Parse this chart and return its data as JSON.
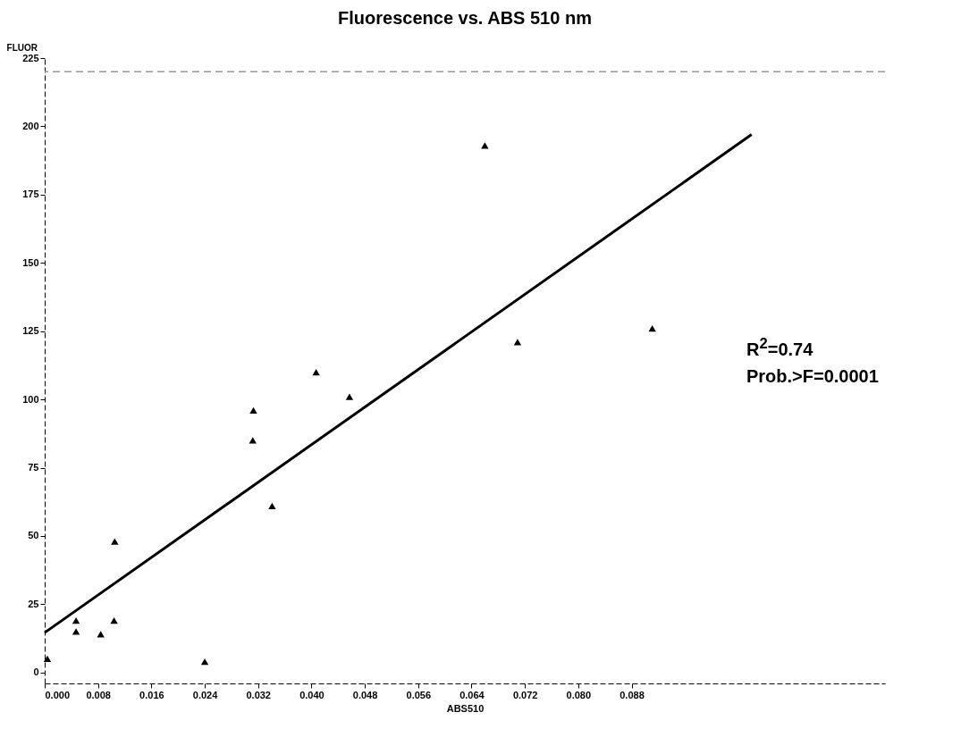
{
  "chart_data": {
    "type": "scatter",
    "title": "Fluorescence vs. ABS 510 nm",
    "xlabel": "ABS510",
    "ylabel": "FLUOR",
    "xlim": [
      0,
      0.126
    ],
    "xticks": [
      {
        "value": 0,
        "label": "0.000"
      },
      0.008,
      0.016,
      0.024,
      0.032,
      {
        "value": 0.04,
        "label": "0.040"
      },
      0.048,
      0.056,
      0.064,
      0.072,
      {
        "value": 0.08,
        "label": "0.080"
      },
      0.088
    ],
    "ylim": [
      -4,
      225
    ],
    "yticks": [
      0,
      25,
      50,
      75,
      100,
      125,
      150,
      175,
      200,
      225
    ],
    "grid": false,
    "series": [
      {
        "type": "scatter",
        "color": "#000000",
        "marker": "triangle",
        "x": [
          0.0004,
          0.0047,
          0.0047,
          0.0084,
          0.0104,
          0.0105,
          0.024,
          0.0312,
          0.0313,
          0.0341,
          0.0407,
          0.0457,
          0.066,
          0.0709,
          0.0911
        ],
        "values": [
          5,
          19,
          15,
          14,
          19,
          48,
          4,
          85,
          96,
          61,
          110,
          101,
          193,
          121,
          126
        ]
      },
      {
        "type": "line",
        "color": "#000000",
        "x": [
          0,
          0.106
        ],
        "values": [
          14.6,
          197
        ]
      }
    ],
    "ref_lines": [
      {
        "axis": "y",
        "value": 220,
        "color": "#999999",
        "line_style": "dashed"
      }
    ],
    "annotations": [
      "R$^{2}$=0.74",
      "Prob.>F=0.0001"
    ]
  }
}
